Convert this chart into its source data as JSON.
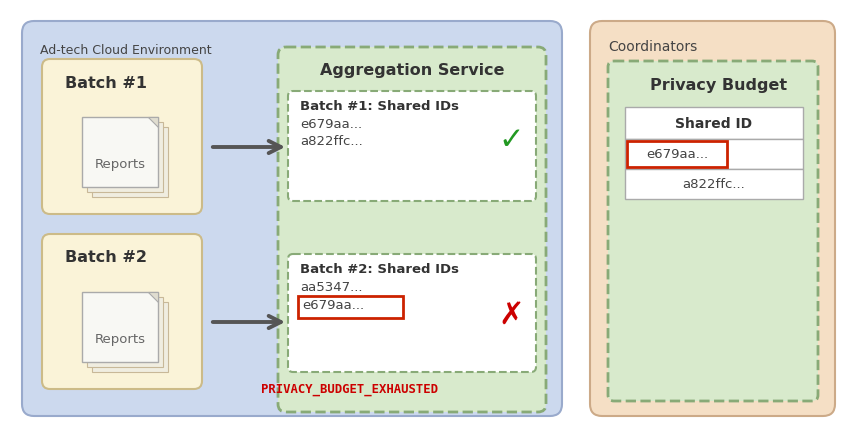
{
  "fig_width": 8.59,
  "fig_height": 4.39,
  "dpi": 100,
  "bg_color": "#ffffff",
  "outer_bg": "#ccd9ee",
  "coordinator_bg": "#f5dfc5",
  "agg_service_bg": "#d8eacc",
  "batch_box_bg": "#faf3d8",
  "inner_box_bg": "#ffffff",
  "title_adtech": "Ad-tech Cloud Environment",
  "title_coordinators": "Coordinators",
  "title_agg": "Aggregation Service",
  "title_privacy": "Privacy Budget",
  "batch1_label": "Batch #1",
  "batch2_label": "Batch #2",
  "reports_label": "Reports",
  "batch1_ids_title": "Batch #1: Shared IDs",
  "batch1_id1": "e679aa...",
  "batch1_id2": "a822ffc...",
  "batch2_ids_title": "Batch #2: Shared IDs",
  "batch2_id1": "aa5347...",
  "batch2_id2": "e679aa...",
  "privacy_col": "Shared ID",
  "privacy_row1": "e679aa...",
  "privacy_row2": "a822ffc...",
  "error_msg": "PRIVACY_BUDGET_EXHAUSTED",
  "error_color": "#cc0000",
  "check_color": "#229922",
  "cross_color": "#cc0000",
  "highlight_border": "#cc2200",
  "text_dark": "#333333",
  "arrow_color": "#555555",
  "dashed_green": "#88aa77",
  "outer_edge": "#99aacc",
  "coord_edge": "#ccaa88",
  "batch_edge": "#ccbb88"
}
